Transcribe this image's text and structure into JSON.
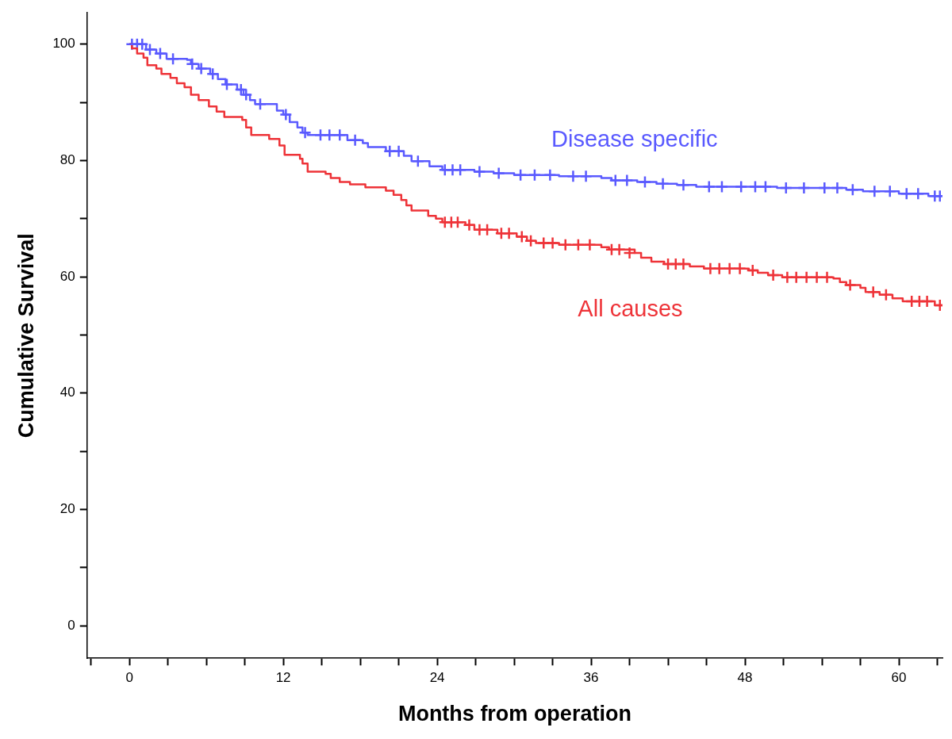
{
  "chart_data": {
    "type": "step",
    "xlabel": "Months from operation",
    "ylabel": "Cumulative Survival",
    "legend": false,
    "grid": false,
    "xlim": [
      -3.3,
      63.4
    ],
    "ylim": [
      -5.6,
      105.4
    ],
    "xticks": [
      {
        "value": -3,
        "label": null
      },
      0,
      {
        "value": 3,
        "label": null
      },
      {
        "value": 6,
        "label": null
      },
      {
        "value": 9,
        "label": null
      },
      12,
      {
        "value": 15,
        "label": null
      },
      {
        "value": 18,
        "label": null
      },
      {
        "value": 21,
        "label": null
      },
      24,
      {
        "value": 27,
        "label": null
      },
      {
        "value": 30,
        "label": null
      },
      {
        "value": 33,
        "label": null
      },
      36,
      {
        "value": 39,
        "label": null
      },
      {
        "value": 42,
        "label": null
      },
      {
        "value": 45,
        "label": null
      },
      48,
      {
        "value": 51,
        "label": null
      },
      {
        "value": 54,
        "label": null
      },
      {
        "value": 57,
        "label": null
      },
      60,
      {
        "value": 63,
        "label": null
      }
    ],
    "yticks": [
      0,
      {
        "value": 10,
        "label": null
      },
      20,
      {
        "value": 30,
        "label": null
      },
      40,
      {
        "value": 50,
        "label": null
      },
      60,
      {
        "value": 70,
        "label": null
      },
      80,
      {
        "value": 90,
        "label": null
      },
      100
    ],
    "series": [
      {
        "name": "Disease specific",
        "color": "#5a5aff",
        "marker": "none",
        "x": [
          0,
          1.3,
          2.1,
          2.9,
          4.5,
          4.8,
          5.4,
          6.3,
          6.9,
          7.5,
          8.4,
          8.9,
          9.4,
          9.8,
          11.5,
          12.0,
          12.5,
          13.1,
          13.5,
          13.9,
          17.0,
          18.2,
          18.6,
          20.0,
          21.4,
          22.0,
          23.4,
          24.4,
          26.9,
          28.4,
          30.0,
          33.5,
          36.8,
          37.6,
          39.6,
          41.1,
          42.7,
          44.2,
          50.5,
          55.9,
          57.2,
          60.0,
          62.3,
          63.4
        ],
        "values": [
          100,
          99.1,
          98.4,
          97.5,
          97.3,
          96.6,
          95.8,
          94.9,
          94.0,
          93.1,
          92.2,
          91.3,
          90.4,
          89.7,
          88.6,
          87.9,
          86.6,
          85.7,
          84.8,
          84.4,
          83.5,
          83.0,
          82.3,
          81.6,
          80.8,
          79.9,
          79.0,
          78.4,
          78.1,
          77.8,
          77.5,
          77.3,
          77.0,
          76.6,
          76.3,
          76.0,
          75.8,
          75.5,
          75.3,
          75.0,
          74.7,
          74.3,
          73.9,
          73.9
        ]
      },
      {
        "name": "All causes",
        "color": "#ee3338",
        "marker": "none",
        "x": [
          0,
          0.2,
          0.6,
          1.1,
          1.4,
          2.1,
          2.5,
          3.2,
          3.7,
          4.3,
          4.8,
          5.4,
          6.2,
          6.8,
          7.4,
          8.8,
          9.1,
          9.5,
          10.9,
          11.7,
          12.1,
          13.3,
          13.5,
          13.9,
          15.3,
          15.7,
          16.4,
          17.2,
          18.4,
          20.0,
          20.6,
          21.2,
          21.6,
          22.0,
          23.3,
          23.9,
          24.4,
          26.2,
          26.9,
          28.7,
          30.2,
          31.0,
          31.7,
          33.5,
          36.8,
          37.4,
          39.4,
          39.9,
          40.7,
          41.7,
          43.7,
          44.8,
          48.3,
          49.0,
          49.8,
          50.9,
          54.9,
          55.4,
          55.9,
          57.0,
          57.4,
          58.5,
          59.5,
          60.3,
          62.8,
          63.4
        ],
        "values": [
          100,
          99.3,
          98.4,
          97.7,
          96.4,
          95.8,
          94.9,
          94.2,
          93.3,
          92.6,
          91.3,
          90.4,
          89.3,
          88.4,
          87.5,
          87.0,
          85.7,
          84.4,
          83.7,
          82.6,
          81.0,
          80.3,
          79.5,
          78.1,
          77.7,
          77.0,
          76.3,
          75.9,
          75.4,
          74.8,
          74.1,
          73.2,
          72.3,
          71.4,
          70.5,
          70.0,
          69.4,
          68.9,
          68.1,
          67.5,
          66.9,
          66.2,
          65.8,
          65.5,
          65.1,
          64.7,
          64.1,
          63.3,
          62.6,
          62.2,
          61.8,
          61.4,
          61.1,
          60.7,
          60.3,
          59.9,
          59.7,
          59.1,
          58.6,
          58.1,
          57.4,
          56.9,
          56.3,
          55.8,
          55.1,
          55.1
        ]
      },
      {
        "type": "scatter",
        "color": "#5a5aff",
        "marker": "cross",
        "x": [
          0.2,
          0.6,
          1.0,
          1.6,
          2.4,
          3.4,
          4.9,
          5.6,
          6.5,
          7.6,
          8.7,
          9.1,
          10.2,
          12.2,
          13.7,
          14.9,
          15.6,
          16.4,
          17.6,
          20.3,
          21.0,
          22.5,
          24.6,
          25.2,
          25.8,
          27.3,
          28.8,
          30.5,
          31.6,
          32.8,
          34.6,
          35.6,
          37.9,
          38.8,
          40.2,
          41.6,
          43.2,
          45.2,
          46.2,
          47.7,
          48.8,
          49.6,
          51.2,
          52.6,
          54.2,
          55.2,
          56.4,
          58.1,
          59.3,
          60.6,
          61.5,
          62.8,
          63.2
        ],
        "values": [
          100,
          100,
          100,
          99.1,
          98.4,
          97.5,
          96.6,
          95.8,
          94.9,
          93.1,
          92.2,
          91.3,
          89.7,
          87.9,
          84.8,
          84.4,
          84.4,
          84.4,
          83.5,
          81.6,
          81.6,
          79.9,
          78.4,
          78.4,
          78.4,
          78.1,
          77.8,
          77.5,
          77.5,
          77.5,
          77.3,
          77.3,
          76.6,
          76.6,
          76.3,
          76.0,
          75.8,
          75.5,
          75.5,
          75.5,
          75.5,
          75.5,
          75.3,
          75.3,
          75.3,
          75.3,
          75.0,
          74.7,
          74.7,
          74.3,
          74.3,
          73.9,
          73.9
        ]
      },
      {
        "type": "scatter",
        "color": "#ee3338",
        "marker": "cross",
        "x": [
          24.6,
          25.1,
          25.6,
          26.5,
          27.3,
          27.9,
          29.0,
          29.6,
          30.6,
          31.3,
          32.3,
          33.0,
          34.0,
          35.0,
          35.9,
          37.6,
          38.2,
          39.0,
          42.0,
          42.6,
          43.2,
          45.3,
          46.0,
          46.8,
          47.6,
          48.6,
          50.2,
          51.3,
          52.0,
          52.8,
          53.6,
          54.4,
          56.2,
          58.0,
          59.0,
          61.0,
          61.6,
          62.2,
          63.2
        ],
        "values": [
          69.4,
          69.4,
          69.4,
          68.9,
          68.1,
          68.1,
          67.5,
          67.5,
          66.9,
          66.2,
          65.8,
          65.8,
          65.5,
          65.5,
          65.5,
          64.7,
          64.7,
          64.1,
          62.2,
          62.2,
          62.2,
          61.4,
          61.4,
          61.4,
          61.4,
          61.1,
          60.3,
          59.9,
          59.9,
          59.9,
          59.9,
          59.9,
          58.6,
          57.4,
          56.9,
          55.8,
          55.8,
          55.8,
          55.1
        ]
      }
    ]
  }
}
